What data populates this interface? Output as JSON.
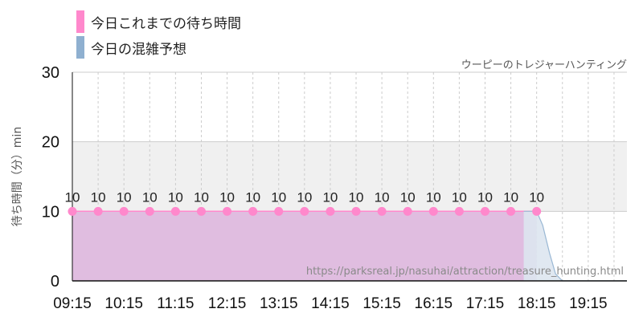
{
  "legend": [
    {
      "label": "今日これまでの待ち時間",
      "color": "#ff88cc"
    },
    {
      "label": "今日の混雑予想",
      "color": "#8fb0d0"
    }
  ],
  "subtitle": "ウーピーのトレジャーハンティング",
  "watermark": "https://parksreal.jp/nasuhai/attraction/treasure_hunting.html",
  "chart_data": {
    "type": "area",
    "title": "",
    "xlabel": "",
    "ylabel": "待ち時間（分）min",
    "ylim": [
      0,
      30
    ],
    "yticks": [
      0,
      10,
      20,
      30
    ],
    "grid": true,
    "band": [
      10,
      20
    ],
    "x_range": [
      "09:15",
      "20:00"
    ],
    "x_ticks": [
      "09:15",
      "10:15",
      "11:15",
      "12:15",
      "13:15",
      "14:15",
      "15:15",
      "16:15",
      "17:15",
      "18:15",
      "19:15"
    ],
    "series": [
      {
        "name": "今日これまでの待ち時間",
        "type": "area",
        "color": "#ff88cc",
        "fill": "#e0bde0",
        "x": [
          "09:15",
          "09:45",
          "10:15",
          "10:45",
          "11:15",
          "11:45",
          "12:15",
          "12:45",
          "13:15",
          "13:45",
          "14:15",
          "14:45",
          "15:15",
          "15:45",
          "16:15",
          "16:45",
          "17:15",
          "17:45",
          "18:15"
        ],
        "values": [
          10,
          10,
          10,
          10,
          10,
          10,
          10,
          10,
          10,
          10,
          10,
          10,
          10,
          10,
          10,
          10,
          10,
          10,
          10
        ],
        "data_labels": true
      },
      {
        "name": "今日の混雑予想",
        "type": "area",
        "color": "#9ab8d4",
        "fill": "#dde6ef",
        "x": [
          "18:00",
          "18:15",
          "18:22",
          "18:30",
          "18:37",
          "18:45",
          "18:52",
          "19:00",
          "19:15",
          "20:00"
        ],
        "values": [
          10,
          10,
          8,
          4,
          1,
          0,
          0,
          0,
          0,
          0
        ]
      }
    ]
  }
}
